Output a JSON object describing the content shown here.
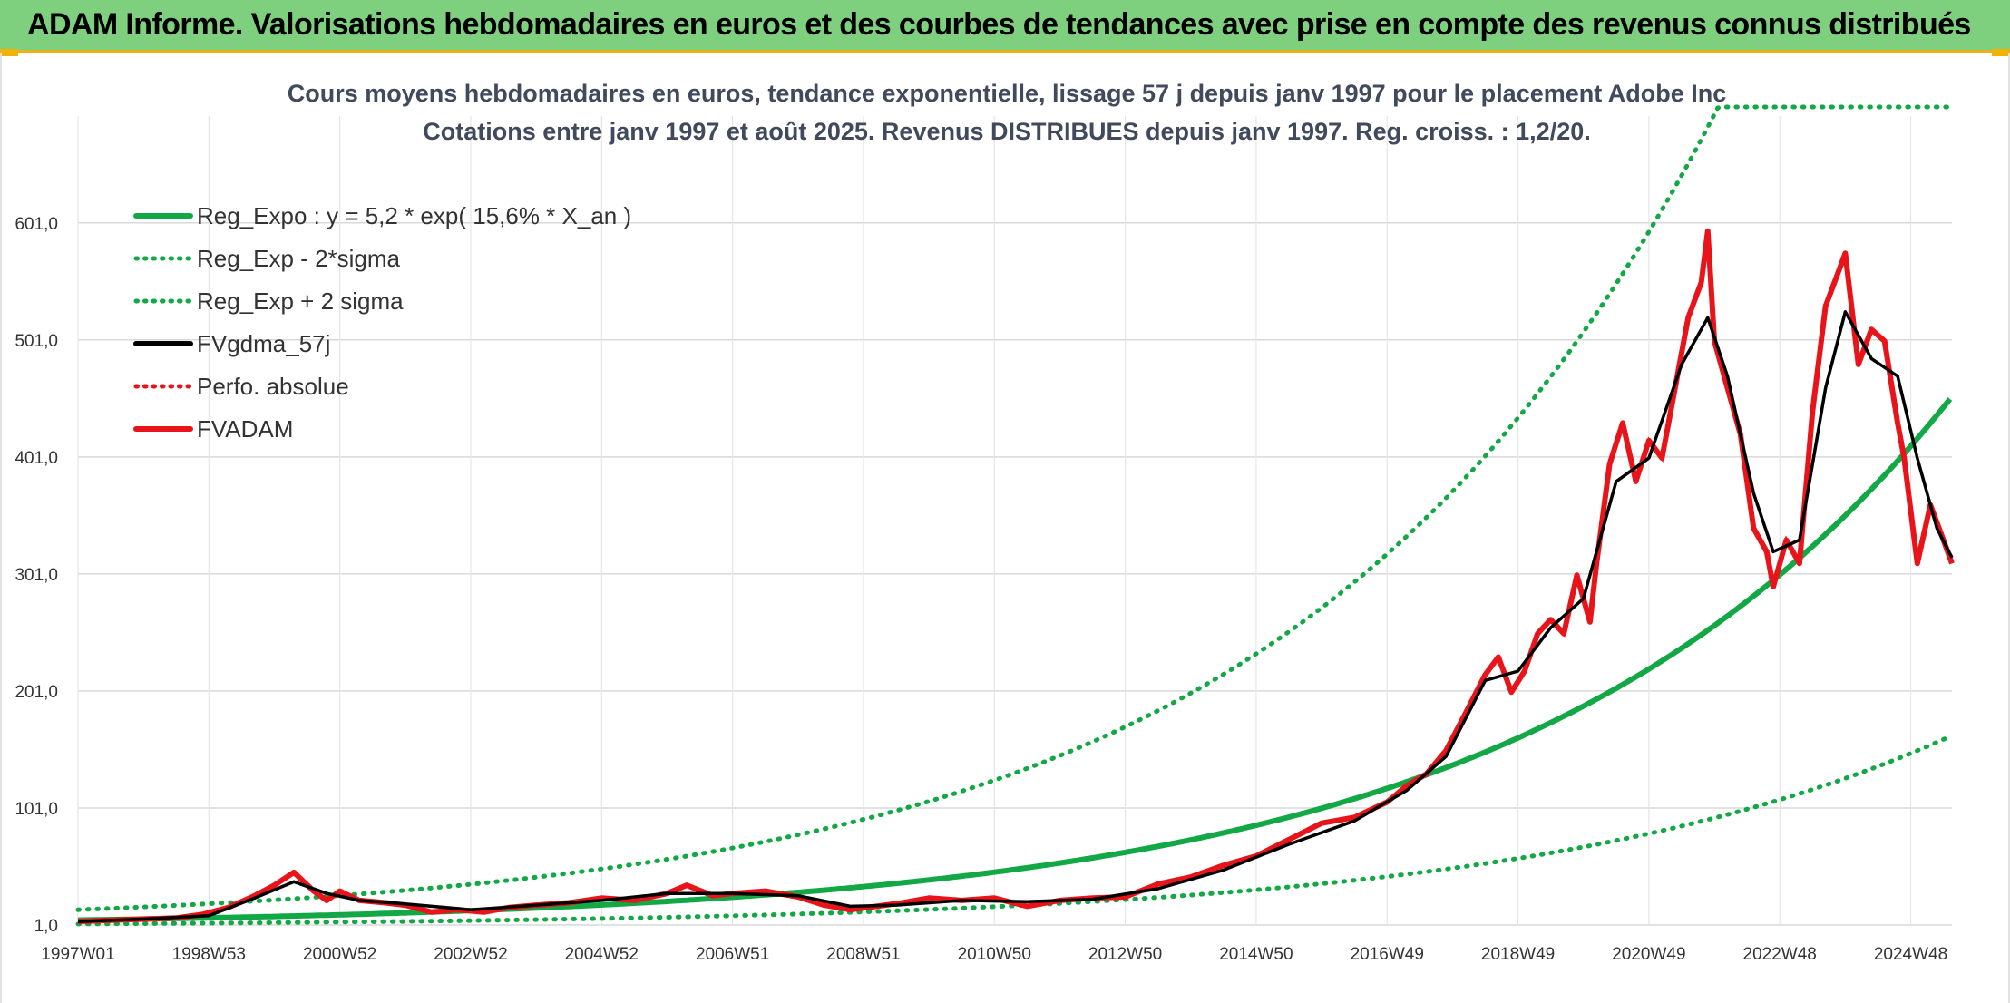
{
  "banner": {
    "title": "ADAM Informe. Valorisations hebdomadaires en euros et des courbes de tendances avec prise en compte des revenus connus distribués"
  },
  "colors": {
    "banner_bg": "#7ed07e",
    "reg_expo": "#12a845",
    "bands": "#12a845",
    "fvgdma": "#000000",
    "perfo": "#e8141a",
    "fvadam": "#e8141a"
  },
  "chart_data": {
    "type": "line",
    "title_lines": [
      "Cours moyens hebdomadaires en euros, tendance exponentielle, lissage 57 j depuis janv 1997 pour le placement Adobe Inc",
      "Cotations entre janv 1997 et août 2025. Revenus DISTRIBUES depuis janv 1997. Reg. croiss. : 1,2/20."
    ],
    "x_range_years": [
      1997.0,
      2025.63
    ],
    "x_tick_labels": [
      {
        "label": "1997W01",
        "year": 1997.0
      },
      {
        "label": "1998W53",
        "year": 1999.0
      },
      {
        "label": "2000W52",
        "year": 2001.0
      },
      {
        "label": "2002W52",
        "year": 2003.0
      },
      {
        "label": "2004W52",
        "year": 2005.0
      },
      {
        "label": "2006W51",
        "year": 2007.0
      },
      {
        "label": "2008W51",
        "year": 2009.0
      },
      {
        "label": "2010W50",
        "year": 2011.0
      },
      {
        "label": "2012W50",
        "year": 2013.0
      },
      {
        "label": "2014W50",
        "year": 2015.0
      },
      {
        "label": "2016W49",
        "year": 2017.0
      },
      {
        "label": "2018W49",
        "year": 2019.0
      },
      {
        "label": "2020W49",
        "year": 2021.0
      },
      {
        "label": "2022W48",
        "year": 2023.0
      },
      {
        "label": "2024W48",
        "year": 2025.0
      }
    ],
    "ylim": [
      1,
      700
    ],
    "y_ticks": [
      1,
      101,
      201,
      301,
      401,
      501,
      601
    ],
    "y_tick_labels": [
      "1,0",
      "101,0",
      "201,0",
      "301,0",
      "401,0",
      "501,0",
      "601,0"
    ],
    "grid": true,
    "legend_position": "top-left",
    "legend": [
      {
        "key": "reg_expo",
        "label": "Reg_Expo : y = 5,2 * exp( 15,6% *  X_an )",
        "style": "solid",
        "color": "#12a845"
      },
      {
        "key": "reg_minus",
        "label": "Reg_Exp - 2*sigma",
        "style": "dotted",
        "color": "#12a845"
      },
      {
        "key": "reg_plus",
        "label": "Reg_Exp + 2 sigma",
        "style": "dotted",
        "color": "#12a845"
      },
      {
        "key": "fvgdma",
        "label": "FVgdma_57j",
        "style": "solid",
        "color": "#000000"
      },
      {
        "key": "perfo",
        "label": "Perfo. absolue",
        "style": "dotted",
        "color": "#e8141a"
      },
      {
        "key": "fvadam",
        "label": "FVADAM",
        "style": "solid",
        "color": "#e8141a"
      }
    ],
    "reg_expo": {
      "a": 5.2,
      "b": 0.156
    },
    "reg_minus_factor": 0.36,
    "reg_plus_factor": 2.7,
    "series": [
      {
        "name": "FVADAM",
        "x": [
          1997.0,
          1997.5,
          1998.0,
          1998.5,
          1998.9,
          1999.3,
          1999.7,
          2000.0,
          2000.3,
          2000.6,
          2000.8,
          2001.0,
          2001.3,
          2001.7,
          2002.0,
          2002.4,
          2002.8,
          2003.2,
          2003.6,
          2004.0,
          2004.5,
          2005.0,
          2005.5,
          2006.0,
          2006.3,
          2006.7,
          2007.0,
          2007.5,
          2008.0,
          2008.4,
          2008.8,
          2009.2,
          2009.6,
          2010.0,
          2010.5,
          2011.0,
          2011.5,
          2012.0,
          2012.5,
          2013.0,
          2013.5,
          2014.0,
          2014.5,
          2015.0,
          2015.5,
          2016.0,
          2016.5,
          2017.0,
          2017.3,
          2017.6,
          2017.9,
          2018.2,
          2018.5,
          2018.7,
          2018.9,
          2019.1,
          2019.3,
          2019.5,
          2019.7,
          2019.9,
          2020.1,
          2020.2,
          2020.4,
          2020.6,
          2020.8,
          2021.0,
          2021.2,
          2021.4,
          2021.6,
          2021.8,
          2021.9,
          2022.0,
          2022.2,
          2022.4,
          2022.6,
          2022.8,
          2022.9,
          2023.1,
          2023.3,
          2023.5,
          2023.7,
          2023.9,
          2024.0,
          2024.2,
          2024.4,
          2024.6,
          2024.8,
          2024.9,
          2025.1,
          2025.3,
          2025.5,
          2025.63
        ],
        "values": [
          4,
          5,
          6,
          7,
          10,
          16,
          26,
          35,
          46,
          30,
          22,
          30,
          22,
          20,
          18,
          12,
          14,
          12,
          16,
          18,
          20,
          24,
          22,
          28,
          35,
          26,
          28,
          30,
          25,
          18,
          14,
          17,
          20,
          24,
          22,
          24,
          17,
          22,
          24,
          25,
          36,
          42,
          52,
          60,
          74,
          88,
          93,
          106,
          120,
          130,
          150,
          182,
          215,
          230,
          200,
          218,
          250,
          262,
          250,
          300,
          260,
          310,
          395,
          430,
          380,
          415,
          400,
          460,
          520,
          550,
          594,
          500,
          460,
          420,
          340,
          320,
          290,
          330,
          310,
          440,
          530,
          560,
          575,
          480,
          510,
          500,
          430,
          400,
          310,
          360,
          330,
          310
        ]
      },
      {
        "name": "FVgdma_57j",
        "x": [
          1997.0,
          1998.0,
          1999.0,
          1999.7,
          2000.3,
          2000.8,
          2001.3,
          2002.0,
          2003.0,
          2004.0,
          2005.0,
          2006.0,
          2007.0,
          2008.0,
          2008.8,
          2009.5,
          2010.5,
          2011.5,
          2012.5,
          2013.5,
          2014.5,
          2015.5,
          2016.5,
          2017.3,
          2017.9,
          2018.5,
          2019.0,
          2019.5,
          2020.0,
          2020.5,
          2021.0,
          2021.5,
          2021.9,
          2022.2,
          2022.6,
          2022.9,
          2023.3,
          2023.7,
          2024.0,
          2024.4,
          2024.8,
          2025.1,
          2025.4,
          2025.63
        ],
        "values": [
          4,
          6,
          9,
          24,
          38,
          28,
          22,
          19,
          14,
          18,
          22,
          28,
          28,
          26,
          17,
          18,
          22,
          21,
          23,
          32,
          48,
          70,
          90,
          116,
          145,
          210,
          218,
          255,
          280,
          380,
          400,
          480,
          520,
          470,
          370,
          320,
          330,
          460,
          525,
          485,
          470,
          400,
          340,
          315
        ]
      }
    ]
  }
}
